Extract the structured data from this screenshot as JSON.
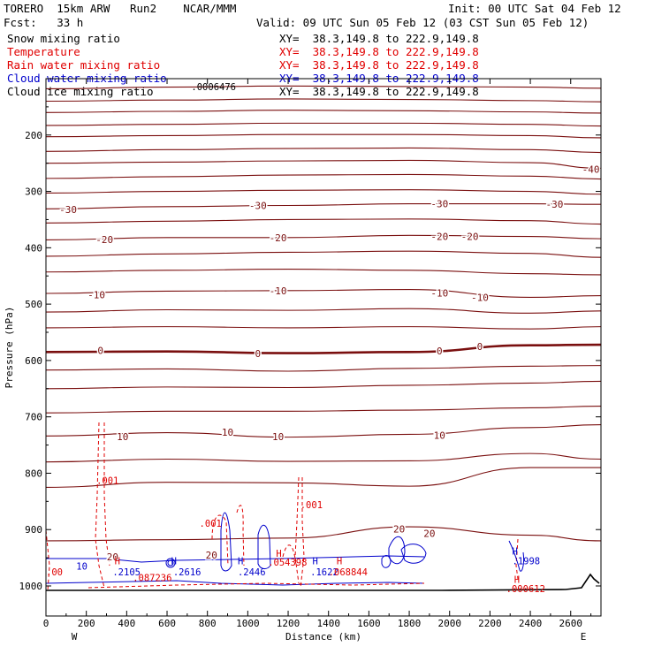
{
  "header": {
    "model": "TORERO  15km ARW   Run2    NCAR/MMM",
    "init": "Init: 00 UTC Sat 04 Feb 12",
    "fcst": "Fcst:   33 h",
    "valid": "Valid: 09 UTC Sun 05 Feb 12 (03 CST Sun 05 Feb 12)"
  },
  "fields": [
    {
      "name": "Snow mixing ratio",
      "xy": "XY=  38.3,149.8 to 222.9,149.8",
      "color": "#000000"
    },
    {
      "name": "Temperature",
      "xy": "XY=  38.3,149.8 to 222.9,149.8",
      "color": "#e00000"
    },
    {
      "name": "Rain water mixing ratio",
      "xy": "XY=  38.3,149.8 to 222.9,149.8",
      "color": "#e00000"
    },
    {
      "name": "Cloud water mixing ratio",
      "xy": "XY=  38.3,149.8 to 222.9,149.8",
      "color": "#0000cc"
    },
    {
      "name": "Cloud ice mixing ratio",
      "xy": "XY=  38.3,149.8 to 222.9,149.8",
      "color": "#000000"
    }
  ],
  "chart_data": {
    "type": "line",
    "xlabel": "Distance (km)",
    "ylabel": "Pressure (hPa)",
    "xlim": [
      0,
      2750
    ],
    "ylim": [
      1050,
      100
    ],
    "x_ticks": [
      0,
      200,
      400,
      600,
      800,
      1000,
      1200,
      1400,
      1600,
      1800,
      2000,
      2200,
      2400,
      2600
    ],
    "y_ticks": [
      200,
      300,
      400,
      500,
      600,
      700,
      800,
      900,
      1000
    ],
    "left_end_label": "W",
    "right_end_label": "E",
    "temperature_labels": [
      {
        "text": "-40",
        "x": 2700,
        "p": 261
      },
      {
        "text": "-30",
        "x": 110,
        "p": 332
      },
      {
        "text": "-30",
        "x": 1050,
        "p": 325
      },
      {
        "text": "-30",
        "x": 1950,
        "p": 322
      },
      {
        "text": "-30",
        "x": 2520,
        "p": 323
      },
      {
        "text": "-20",
        "x": 290,
        "p": 385
      },
      {
        "text": "-20",
        "x": 1150,
        "p": 382
      },
      {
        "text": "-20",
        "x": 1950,
        "p": 380
      },
      {
        "text": "-20",
        "x": 2100,
        "p": 380
      },
      {
        "text": "-10",
        "x": 250,
        "p": 483
      },
      {
        "text": "-10",
        "x": 1150,
        "p": 476
      },
      {
        "text": "-10",
        "x": 1950,
        "p": 480
      },
      {
        "text": "-10",
        "x": 2150,
        "p": 488
      },
      {
        "text": "0",
        "x": 270,
        "p": 582
      },
      {
        "text": "0",
        "x": 1050,
        "p": 588
      },
      {
        "text": "0",
        "x": 1950,
        "p": 583
      },
      {
        "text": "0",
        "x": 2150,
        "p": 575
      },
      {
        "text": "10",
        "x": 380,
        "p": 735
      },
      {
        "text": "10",
        "x": 900,
        "p": 727
      },
      {
        "text": "10",
        "x": 1150,
        "p": 735
      },
      {
        "text": "10",
        "x": 1950,
        "p": 733
      },
      {
        "text": "20",
        "x": 1750,
        "p": 899
      },
      {
        "text": "20",
        "x": 1900,
        "p": 907
      },
      {
        "text": "20",
        "x": 330,
        "p": 948
      },
      {
        "text": "20",
        "x": 820,
        "p": 945
      }
    ],
    "hydrometeor_labels": [
      {
        "text": ".001",
        "x": 250,
        "p": 813,
        "color": "#e00000"
      },
      {
        "text": ".001",
        "x": 1260,
        "p": 856,
        "color": "#e00000"
      },
      {
        "text": ".001",
        "x": 760,
        "p": 889,
        "color": "#e00000"
      },
      {
        "text": ".0006476",
        "x": 720,
        "p": 114,
        "color": "#000000"
      },
      {
        "text": "H",
        "x": 340,
        "p": 955,
        "color": "#e00000"
      },
      {
        "text": ".2105",
        "x": 330,
        "p": 975,
        "color": "#0000cc"
      },
      {
        "text": ".087236",
        "x": 430,
        "p": 985,
        "color": "#e00000"
      },
      {
        "text": "H",
        "x": 620,
        "p": 955,
        "color": "#0000cc"
      },
      {
        "text": ".2616",
        "x": 630,
        "p": 975,
        "color": "#0000cc"
      },
      {
        "text": "H",
        "x": 950,
        "p": 955,
        "color": "#0000cc"
      },
      {
        "text": ".2446",
        "x": 950,
        "p": 975,
        "color": "#0000cc"
      },
      {
        "text": "H",
        "x": 1140,
        "p": 942,
        "color": "#e00000"
      },
      {
        "text": ".054398",
        "x": 1100,
        "p": 958,
        "color": "#e00000"
      },
      {
        "text": "H",
        "x": 1320,
        "p": 955,
        "color": "#0000cc"
      },
      {
        "text": ".1622",
        "x": 1310,
        "p": 975,
        "color": "#0000cc"
      },
      {
        "text": "H",
        "x": 1440,
        "p": 955,
        "color": "#e00000"
      },
      {
        "text": ".068844",
        "x": 1400,
        "p": 975,
        "color": "#e00000"
      },
      {
        "text": "H",
        "x": 2310,
        "p": 938,
        "color": "#0000cc"
      },
      {
        "text": ".1998",
        "x": 2310,
        "p": 955,
        "color": "#0000cc"
      },
      {
        "text": "H",
        "x": 2320,
        "p": 988,
        "color": "#e00000"
      },
      {
        "text": ".000612",
        "x": 2280,
        "p": 1005,
        "color": "#e00000"
      },
      {
        "text": ".00",
        "x": 0,
        "p": 975,
        "color": "#e00000"
      },
      {
        "text": "10",
        "x": 150,
        "p": 965,
        "color": "#0000cc"
      }
    ],
    "temperature_isotherms": [
      {
        "x": [
          0,
          600,
          1200,
          1800,
          2400,
          2750
        ],
        "p": [
          118,
          115,
          113,
          114,
          115,
          117
        ]
      },
      {
        "x": [
          0,
          600,
          1200,
          1800,
          2400,
          2750
        ],
        "p": [
          140,
          138,
          136,
          137,
          139,
          141
        ]
      },
      {
        "x": [
          0,
          600,
          1200,
          1800,
          2400,
          2750
        ],
        "p": [
          160,
          158,
          156,
          157,
          159,
          161
        ]
      },
      {
        "x": [
          0,
          600,
          1200,
          1800,
          2400,
          2750
        ],
        "p": [
          183,
          181,
          179,
          179,
          181,
          184
        ]
      },
      {
        "x": [
          0,
          600,
          1200,
          1800,
          2400,
          2750
        ],
        "p": [
          203,
          201,
          199,
          199,
          201,
          205
        ]
      },
      {
        "x": [
          0,
          600,
          1200,
          1800,
          2400,
          2750
        ],
        "p": [
          229,
          226,
          224,
          223,
          226,
          231
        ]
      },
      {
        "x": [
          0,
          600,
          1200,
          1800,
          2400,
          2750
        ],
        "p": [
          250,
          248,
          246,
          245,
          249,
          259
        ]
      },
      {
        "x": [
          0,
          600,
          1200,
          1800,
          2400,
          2750
        ],
        "p": [
          277,
          274,
          271,
          270,
          273,
          278
        ]
      },
      {
        "x": [
          0,
          600,
          1200,
          1800,
          2400,
          2750
        ],
        "p": [
          303,
          300,
          298,
          297,
          300,
          305
        ]
      },
      {
        "x": [
          0,
          600,
          1200,
          1800,
          2400,
          2750
        ],
        "p": [
          331,
          327,
          325,
          322,
          322,
          323
        ]
      },
      {
        "x": [
          0,
          600,
          1200,
          1800,
          2400,
          2750
        ],
        "p": [
          356,
          353,
          350,
          349,
          352,
          358
        ]
      },
      {
        "x": [
          0,
          600,
          1200,
          1800,
          2400,
          2750
        ],
        "p": [
          386,
          382,
          382,
          378,
          380,
          384
        ]
      },
      {
        "x": [
          0,
          600,
          1200,
          1800,
          2400,
          2750
        ],
        "p": [
          415,
          411,
          408,
          406,
          410,
          417
        ]
      },
      {
        "x": [
          0,
          600,
          1200,
          1800,
          2400,
          2750
        ],
        "p": [
          443,
          440,
          438,
          440,
          446,
          448
        ]
      },
      {
        "x": [
          0,
          600,
          1200,
          1800,
          2400,
          2750
        ],
        "p": [
          481,
          477,
          476,
          474,
          488,
          485
        ]
      },
      {
        "x": [
          0,
          600,
          1200,
          1800,
          2400,
          2750
        ],
        "p": [
          514,
          510,
          511,
          508,
          516,
          512
        ]
      },
      {
        "x": [
          0,
          600,
          1200,
          1800,
          2400,
          2750
        ],
        "p": [
          542,
          540,
          542,
          540,
          544,
          540
        ]
      },
      {
        "x": [
          0,
          600,
          1200,
          1800,
          2400,
          2750
        ],
        "p": [
          585,
          584,
          587,
          585,
          573,
          572
        ]
      },
      {
        "x": [
          0,
          600,
          1200,
          1800,
          2400,
          2750
        ],
        "p": [
          617,
          615,
          619,
          614,
          610,
          609
        ]
      },
      {
        "x": [
          0,
          600,
          1200,
          1800,
          2400,
          2750
        ],
        "p": [
          650,
          647,
          648,
          644,
          640,
          637
        ]
      },
      {
        "x": [
          0,
          600,
          1200,
          1800,
          2400,
          2750
        ],
        "p": [
          693,
          690,
          690,
          688,
          684,
          681
        ]
      },
      {
        "x": [
          0,
          600,
          1200,
          1800,
          2400,
          2750
        ],
        "p": [
          734,
          728,
          736,
          731,
          719,
          714
        ]
      },
      {
        "x": [
          0,
          600,
          1200,
          1800,
          2400,
          2750
        ],
        "p": [
          780,
          775,
          779,
          778,
          765,
          775
        ]
      },
      {
        "x": [
          0,
          600,
          1200,
          1800,
          2400,
          2750
        ],
        "p": [
          825,
          816,
          817,
          823,
          790,
          790
        ]
      },
      {
        "x": [
          0,
          600,
          1200,
          1800,
          2400,
          2750
        ],
        "p": [
          920,
          918,
          915,
          895,
          910,
          920
        ]
      }
    ]
  }
}
